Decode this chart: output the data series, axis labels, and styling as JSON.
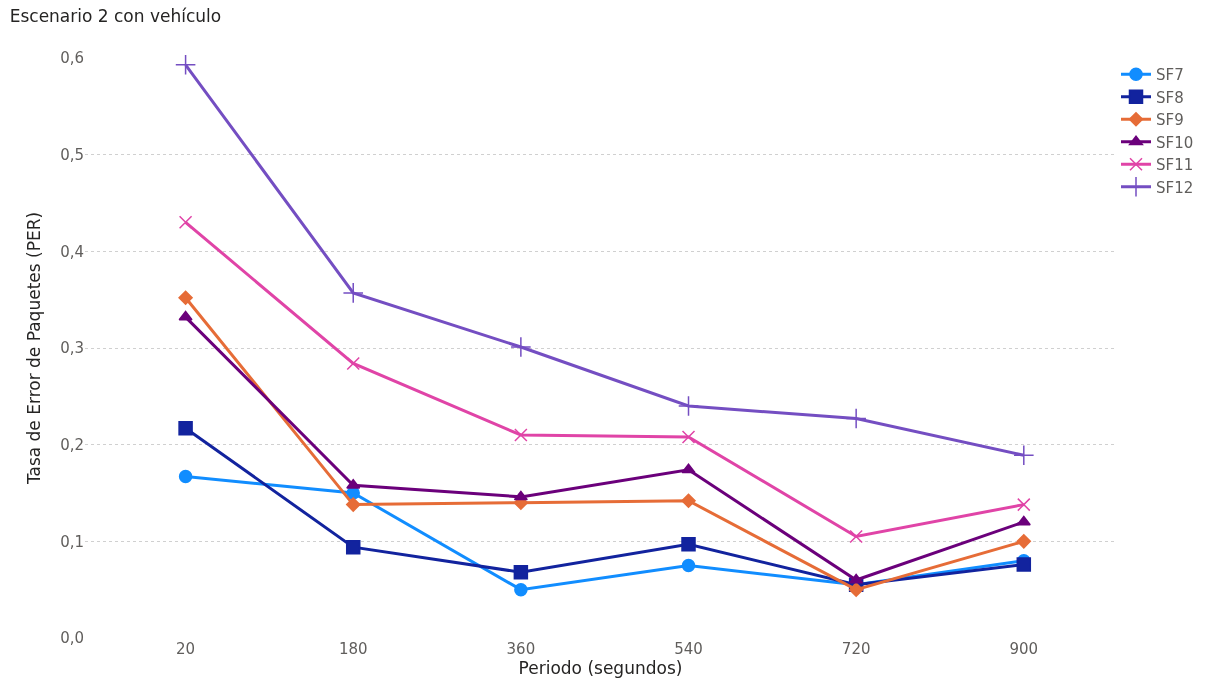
{
  "chart_data": {
    "type": "line",
    "title": "Escenario 2 con vehículo",
    "xlabel": "Periodo (segundos)",
    "ylabel": "Tasa de Error de Paquetes (PER)",
    "categories": [
      "20",
      "180",
      "360",
      "540",
      "720",
      "900"
    ],
    "series": [
      {
        "name": "SF7",
        "color": "#118dff",
        "marker": "circle",
        "values": [
          0.167,
          0.15,
          0.05,
          0.075,
          0.055,
          0.08
        ]
      },
      {
        "name": "SF8",
        "color": "#12239e",
        "marker": "square",
        "values": [
          0.217,
          0.094,
          0.068,
          0.097,
          0.055,
          0.076
        ]
      },
      {
        "name": "SF9",
        "color": "#e66c37",
        "marker": "diamond",
        "values": [
          0.352,
          0.138,
          0.14,
          0.142,
          0.05,
          0.1
        ]
      },
      {
        "name": "SF10",
        "color": "#6b007b",
        "marker": "triangle",
        "values": [
          0.332,
          0.158,
          0.146,
          0.174,
          0.06,
          0.12
        ]
      },
      {
        "name": "SF11",
        "color": "#e044a7",
        "marker": "cross",
        "values": [
          0.43,
          0.284,
          0.21,
          0.208,
          0.105,
          0.138
        ]
      },
      {
        "name": "SF12",
        "color": "#744ec2",
        "marker": "plus",
        "values": [
          0.593,
          0.357,
          0.301,
          0.24,
          0.227,
          0.189
        ]
      }
    ],
    "ylim": [
      0,
      0.6
    ],
    "yticks": [
      {
        "value": 0,
        "label": "0,0"
      },
      {
        "value": 0.1,
        "label": "0,1"
      },
      {
        "value": 0.2,
        "label": "0,2"
      },
      {
        "value": 0.3,
        "label": "0,3"
      },
      {
        "value": 0.4,
        "label": "0,4"
      },
      {
        "value": 0.5,
        "label": "0,5"
      },
      {
        "value": 0.6,
        "label": "0,6"
      }
    ],
    "grid": "y",
    "legend": "top right",
    "line_style": "solid"
  }
}
